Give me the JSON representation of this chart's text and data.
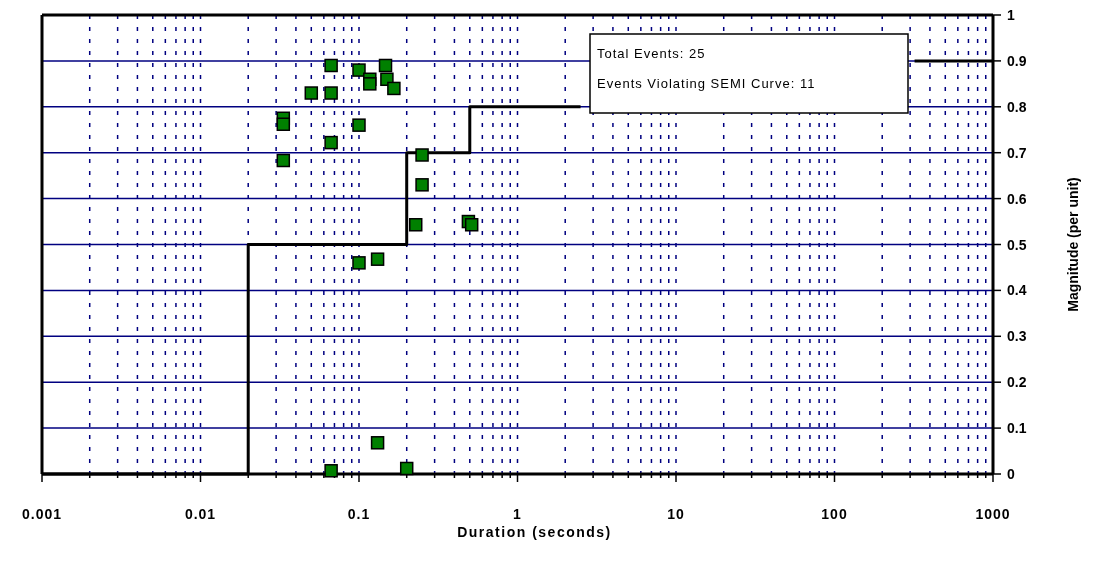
{
  "chart_data": {
    "type": "scatter",
    "xlabel": "Duration (seconds)",
    "ylabel": "Magnitude (per unit)",
    "log": "x",
    "xlim": [
      0.001,
      1000
    ],
    "ylim": [
      0,
      1
    ],
    "xticks": [
      0.001,
      {
        "value": 0.002,
        "label": null
      },
      {
        "value": 0.003,
        "label": null
      },
      {
        "value": 0.004,
        "label": null
      },
      {
        "value": 0.005,
        "label": null
      },
      {
        "value": 0.006,
        "label": null
      },
      {
        "value": 0.007,
        "label": null
      },
      {
        "value": 0.008,
        "label": null
      },
      {
        "value": 0.009,
        "label": null
      },
      0.01,
      {
        "value": 0.02,
        "label": null
      },
      {
        "value": 0.03,
        "label": null
      },
      {
        "value": 0.04,
        "label": null
      },
      {
        "value": 0.05,
        "label": null
      },
      {
        "value": 0.06,
        "label": null
      },
      {
        "value": 0.07,
        "label": null
      },
      {
        "value": 0.08,
        "label": null
      },
      {
        "value": 0.09,
        "label": null
      },
      0.1,
      {
        "value": 0.2,
        "label": null
      },
      {
        "value": 0.3,
        "label": null
      },
      {
        "value": 0.4,
        "label": null
      },
      {
        "value": 0.5,
        "label": null
      },
      {
        "value": 0.6,
        "label": null
      },
      {
        "value": 0.7,
        "label": null
      },
      {
        "value": 0.8,
        "label": null
      },
      {
        "value": 0.9,
        "label": null
      },
      1,
      {
        "value": 2,
        "label": null
      },
      {
        "value": 3,
        "label": null
      },
      {
        "value": 4,
        "label": null
      },
      {
        "value": 5,
        "label": null
      },
      {
        "value": 6,
        "label": null
      },
      {
        "value": 7,
        "label": null
      },
      {
        "value": 8,
        "label": null
      },
      {
        "value": 9,
        "label": null
      },
      10,
      {
        "value": 20,
        "label": null
      },
      {
        "value": 30,
        "label": null
      },
      {
        "value": 40,
        "label": null
      },
      {
        "value": 50,
        "label": null
      },
      {
        "value": 60,
        "label": null
      },
      {
        "value": 70,
        "label": null
      },
      {
        "value": 80,
        "label": null
      },
      {
        "value": 90,
        "label": null
      },
      100,
      {
        "value": 200,
        "label": null
      },
      {
        "value": 300,
        "label": null
      },
      {
        "value": 400,
        "label": null
      },
      {
        "value": 500,
        "label": null
      },
      {
        "value": 600,
        "label": null
      },
      {
        "value": 700,
        "label": null
      },
      {
        "value": 800,
        "label": null
      },
      {
        "value": 900,
        "label": null
      },
      1000
    ],
    "yticks": [
      0,
      0.1,
      0.2,
      0.3,
      0.4,
      0.5,
      0.6,
      0.7,
      0.8,
      0.9,
      1
    ],
    "grid": true,
    "marker": "square",
    "series": [
      {
        "type": "line",
        "color": "#000000",
        "marker": "none",
        "x": [
          0.001,
          0.02,
          0.02,
          0.2,
          0.2,
          0.5,
          0.5,
          2.5,
          10,
          320,
          1000
        ],
        "values": [
          0,
          0,
          0.5,
          0.5,
          0.7,
          0.7,
          0.8,
          0.8,
          null,
          0.9,
          0.9
        ]
      },
      {
        "color": "#008000",
        "x": [
          0.0667,
          0.1,
          0.117,
          0.117,
          0.147,
          0.15,
          0.166,
          0.05,
          0.0667,
          0.0333,
          0.0333,
          0.1,
          0.0667,
          0.0333,
          0.25,
          0.25,
          0.228,
          0.49,
          0.514,
          0.1,
          0.131,
          0.131,
          0.0667,
          0.2
        ],
        "values": [
          0.89,
          0.88,
          0.86,
          0.85,
          0.89,
          0.86,
          0.84,
          0.83,
          0.83,
          0.775,
          0.762,
          0.76,
          0.722,
          0.683,
          0.695,
          0.63,
          0.543,
          0.55,
          0.543,
          0.46,
          0.468,
          0.068,
          0.007,
          0.012
        ]
      }
    ],
    "annotations": [
      "Total Events: 25",
      "Events Violating SEMI Curve: 11"
    ]
  }
}
